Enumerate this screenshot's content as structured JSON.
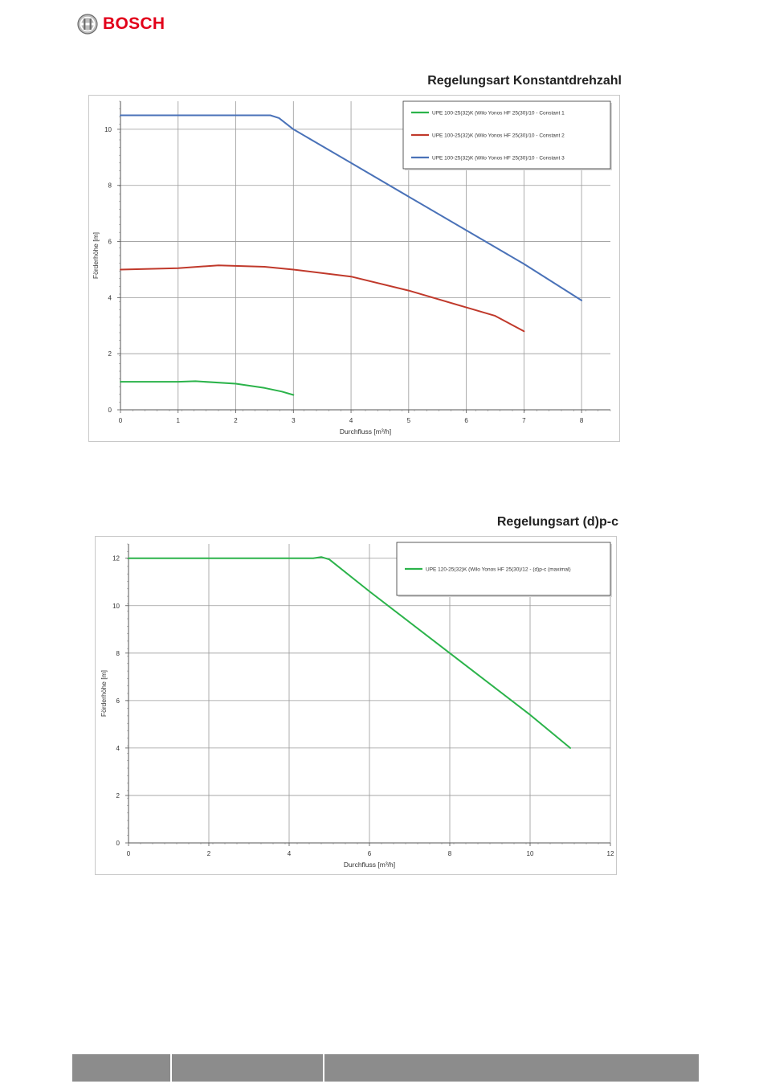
{
  "header": {
    "brand": "BOSCH"
  },
  "charts": [
    {
      "title": "Regelungsart Konstantdrehzahl"
    },
    {
      "title": "Regelungsart (d)p-c"
    }
  ],
  "chart_data": [
    {
      "type": "line",
      "title": "Regelungsart Konstantdrehzahl",
      "xlabel": "Durchfluss [m³/h]",
      "ylabel": "Förderhöhe [m]",
      "xlim": [
        0,
        8.5
      ],
      "ylim": [
        0,
        11
      ],
      "xticks": [
        "0",
        "1",
        "2",
        "3",
        "4",
        "5",
        "6",
        "7",
        "8"
      ],
      "yticks": [
        "0",
        "2",
        "4",
        "6",
        "8",
        "10"
      ],
      "grid": true,
      "legend_position": "top-right",
      "series": [
        {
          "name": "UPE 100-25(32)K (Wilo Yonos HF 25(30)/10 - Constant 1",
          "color": "#2bb34a",
          "x": [
            0,
            1,
            1.3,
            2,
            2.5,
            2.8,
            3.0
          ],
          "y": [
            1.0,
            1.0,
            1.02,
            0.93,
            0.78,
            0.65,
            0.53
          ]
        },
        {
          "name": "UPE 100-25(32)K (Wilo Yonos HF 25(30)/10 - Constant 2",
          "color": "#c0392b",
          "x": [
            0,
            1,
            1.7,
            2.5,
            3,
            4,
            5,
            6,
            6.5,
            7
          ],
          "y": [
            5.0,
            5.05,
            5.15,
            5.1,
            5.0,
            4.75,
            4.25,
            3.65,
            3.35,
            2.8
          ]
        },
        {
          "name": "UPE 100-25(32)K (Wilo Yonos HF 25(30)/10 - Constant 3",
          "color": "#4a72b8",
          "x": [
            0,
            1,
            2,
            2.6,
            2.75,
            3.0,
            4,
            5,
            6,
            7,
            8
          ],
          "y": [
            10.5,
            10.5,
            10.5,
            10.5,
            10.4,
            10.0,
            8.8,
            7.6,
            6.4,
            5.2,
            3.9
          ]
        }
      ]
    },
    {
      "type": "line",
      "title": "Regelungsart (d)p-c",
      "xlabel": "Durchfluss [m³/h]",
      "ylabel": "Förderhöhe [m]",
      "xlim": [
        0,
        12
      ],
      "ylim": [
        0,
        12.6
      ],
      "xticks": [
        "0",
        "2",
        "4",
        "6",
        "8",
        "10",
        "12"
      ],
      "yticks": [
        "0",
        "2",
        "4",
        "6",
        "8",
        "10",
        "12"
      ],
      "grid": true,
      "legend_position": "top-right",
      "series": [
        {
          "name": "UPE 120-25(32)K (Wilo Yonos HF 25(30)/12 - (d)p-c (maximal)",
          "color": "#2bb34a",
          "x": [
            0,
            2,
            4,
            4.6,
            4.8,
            5.0,
            6,
            8,
            10,
            11
          ],
          "y": [
            12.0,
            12.0,
            12.0,
            12.0,
            12.05,
            11.95,
            10.6,
            8.0,
            5.4,
            4.0
          ]
        }
      ]
    }
  ]
}
